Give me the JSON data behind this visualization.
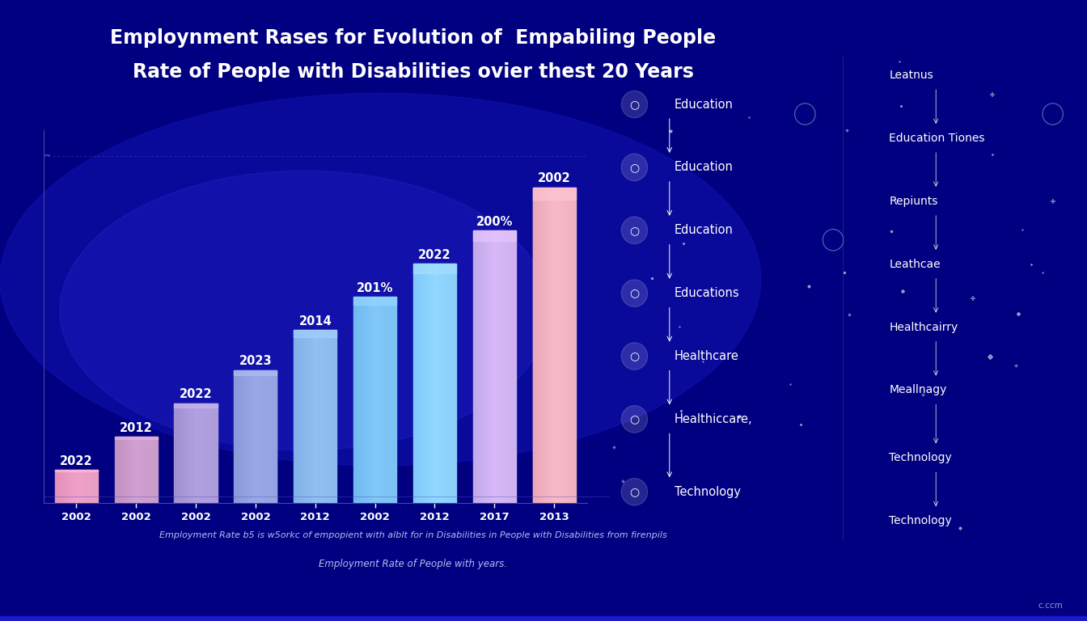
{
  "title_line1": "Employnment Rases for Evolution of  Empabiling People",
  "title_line2": "Rate of People with Disabilities ovier thest 20 Years",
  "bg_color_dark": "#000080",
  "bg_color_mid": "#0000cc",
  "bar_labels_top": [
    "2022",
    "2012",
    "2022",
    "2023",
    "2014",
    "201%",
    "2022",
    "200%",
    "2002"
  ],
  "bar_x_labels": [
    "2002",
    "2002",
    "2002",
    "2002",
    "2012",
    "2002",
    "2012",
    "2017",
    "2013"
  ],
  "bar_heights": [
    1.0,
    2.0,
    3.0,
    4.0,
    5.2,
    6.2,
    7.2,
    8.2,
    9.5
  ],
  "bar_colors_left": [
    "#e090b8",
    "#c090c0",
    "#a090d0",
    "#8898d8",
    "#80b0e8",
    "#70b8f0",
    "#80c8f8",
    "#c0a8e8",
    "#e8a8b8"
  ],
  "bar_colors_right": [
    "#f0a0c8",
    "#d0a0d0",
    "#b0a0e0",
    "#98a8e8",
    "#90c0f0",
    "#80c8f8",
    "#90d8ff",
    "#d8b8f8",
    "#f8b8c8"
  ],
  "bar_colors_top": [
    "#f8c0d8",
    "#e0b8e0",
    "#c8b8f0",
    "#b0c0f8",
    "#a8d0ff",
    "#98d8ff",
    "#a8e0ff",
    "#e8c8ff",
    "#ffc8d8"
  ],
  "footnote_line1": "Employment Rate b5 is w5orkc of empopient with alblt for in Disabilities in People with Disabilities from firenpils",
  "footnote_line2": "Employment Rate of People with years.",
  "right_labels_left": [
    "Education",
    "Education",
    "Education",
    "Educations",
    "Healthcare",
    "Healthiccare,",
    "Technology"
  ],
  "right_labels_right": [
    "Leatnus",
    "Education Tiones",
    "Repiunts",
    "Leathcae",
    "Healthcairry",
    "Meallnagy",
    "Technology",
    "Technology"
  ],
  "watermark": "c.ccm"
}
